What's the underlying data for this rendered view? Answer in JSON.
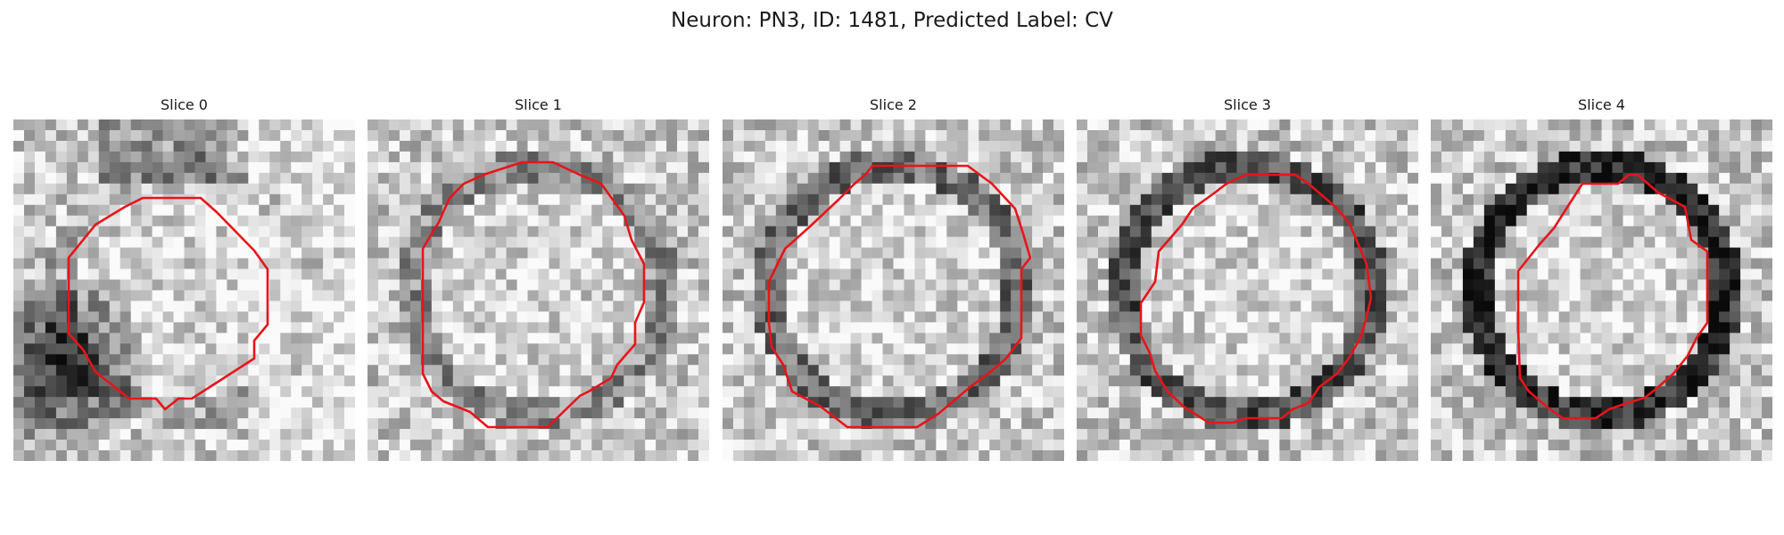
{
  "figure": {
    "title": "Neuron: PN3, ID: 1481, Predicted Label: CV",
    "outline_color": "#e8141a",
    "panels": [
      {
        "title": "Slice 0",
        "image": "grayscale-micrograph-slice-0",
        "seed": 11,
        "ring_dark": 0.1,
        "blob": true
      },
      {
        "title": "Slice 1",
        "image": "grayscale-micrograph-slice-1",
        "seed": 23,
        "ring_dark": 0.22,
        "blob": false
      },
      {
        "title": "Slice 2",
        "image": "grayscale-micrograph-slice-2",
        "seed": 37,
        "ring_dark": 0.35,
        "blob": false
      },
      {
        "title": "Slice 3",
        "image": "grayscale-micrograph-slice-3",
        "seed": 41,
        "ring_dark": 0.45,
        "blob": false
      },
      {
        "title": "Slice 4",
        "image": "grayscale-micrograph-slice-4",
        "seed": 59,
        "ring_dark": 0.6,
        "blob": false
      }
    ]
  }
}
